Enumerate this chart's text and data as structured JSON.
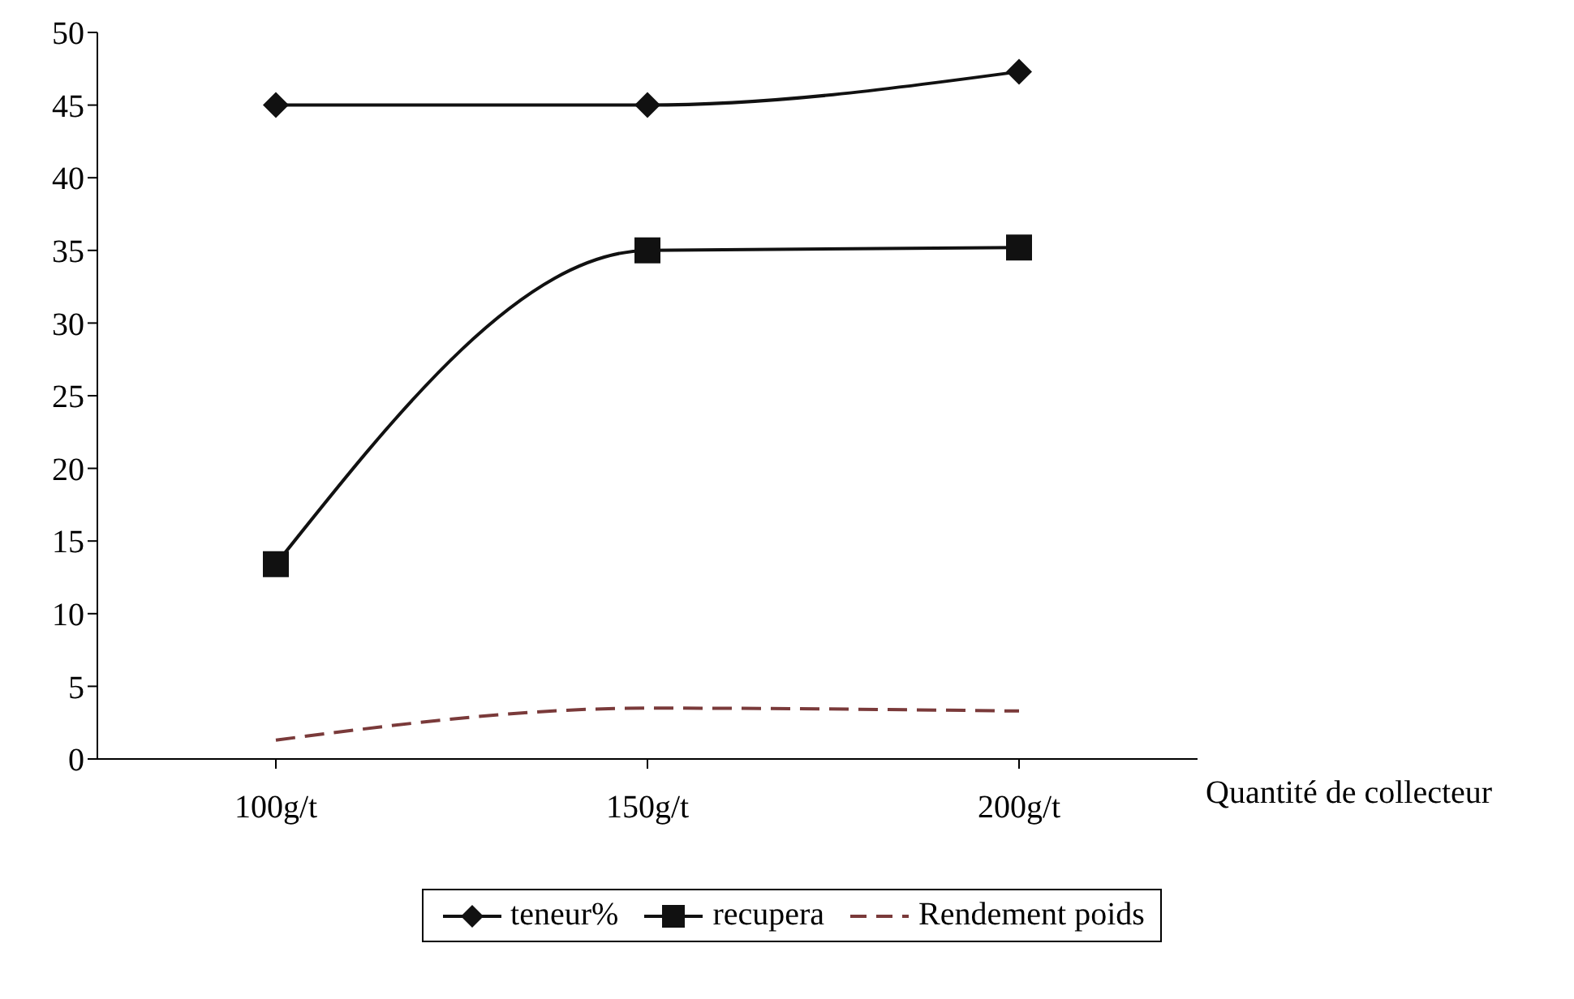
{
  "chart_data": {
    "type": "line",
    "xlabel": "Quantité de collecteur",
    "categories": [
      "100g/t",
      "150g/t",
      "200g/t"
    ],
    "series": [
      {
        "name": "teneur%",
        "color": "#111111",
        "marker": "diamond",
        "line_style": "solid",
        "values": [
          45,
          45,
          47.3
        ]
      },
      {
        "name": "recupera",
        "color": "#111111",
        "marker": "square",
        "line_style": "solid",
        "values": [
          13.4,
          35,
          35.2
        ]
      },
      {
        "name": "Rendement poids",
        "color": "#7a3a3a",
        "marker": "none",
        "line_style": "dashed",
        "values": [
          1.3,
          3.5,
          3.3
        ]
      }
    ],
    "ylim": [
      0,
      50
    ],
    "yticks": [
      0,
      5,
      10,
      15,
      20,
      25,
      30,
      35,
      40,
      45,
      50
    ],
    "grid": false,
    "legend": "bottom"
  }
}
